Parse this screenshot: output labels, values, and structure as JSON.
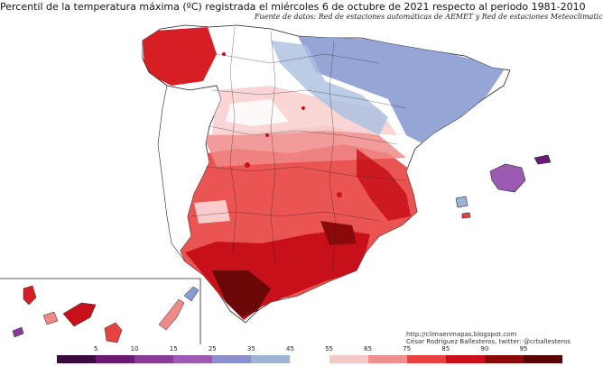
{
  "title": "Percentil de la temperatura máxima (ºC) registrada el miércoles 6 de octubre de 2021 respecto al periodo 1981-2010",
  "subtitle": "Fuente de datos: Red de estaciones automáticas de AEMET y Red de estaciones Meteoclimatic",
  "credits": {
    "url": "http://climaenmapas.blogspot.com",
    "author": "César Rodríguez Ballesteros, twitter: @crballesteros"
  },
  "legend": {
    "ticks": [
      "5",
      "10",
      "15",
      "25",
      "35",
      "45",
      "55",
      "65",
      "75",
      "85",
      "90",
      "95"
    ],
    "colors": [
      "#3a0a40",
      "#6a1a72",
      "#8a3a98",
      "#9b5bb3",
      "#8a8fcc",
      "#9fb3d9",
      "#ffffff",
      "#f6c9c9",
      "#ee8f8f",
      "#e8413f",
      "#c8101a",
      "#8a0a0a",
      "#5a0505"
    ]
  },
  "palette": {
    "dark_red": "#6a0808",
    "red": "#d81e25",
    "light_red": "#f08a8a",
    "pink": "#f8d0d0",
    "white": "#ffffff",
    "light_blue": "#a9bfe0",
    "blue": "#8a9bd0",
    "purple": "#8a4aa0"
  }
}
